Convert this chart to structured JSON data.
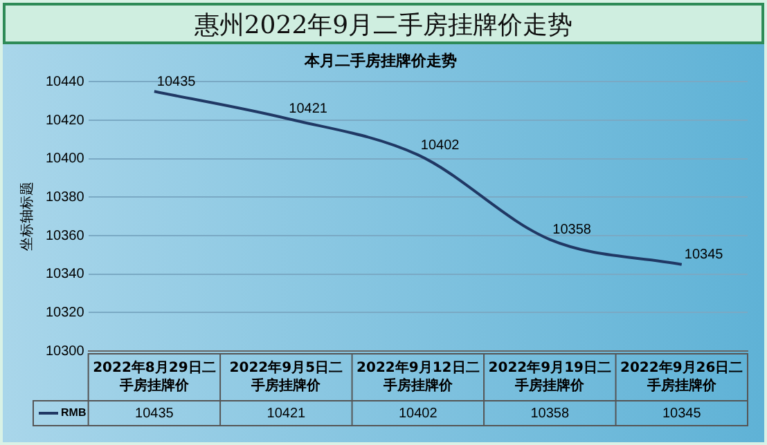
{
  "chart_data": {
    "type": "line",
    "title": "惠州2022年9月二手房挂牌价走势",
    "subtitle": "本月二手房挂牌价走势",
    "ylabel": "坐标轴标题",
    "categories": [
      "2022年8月29日二手房挂牌价",
      "2022年9月5日二手房挂牌价",
      "2022年9月12日二手房挂牌价",
      "2022年9月19日二手房挂牌价",
      "2022年9月26日二手房挂牌价"
    ],
    "series": [
      {
        "name": "RMB",
        "color": "#203864",
        "values": [
          10435,
          10421,
          10402,
          10358,
          10345
        ]
      }
    ],
    "annotations": [
      {
        "text": "10435",
        "x": "2022年8月29日二手房挂牌价",
        "y": 10435
      },
      {
        "text": "10421",
        "x": "2022年9月5日二手房挂牌价",
        "y": 10421
      },
      {
        "text": "10402",
        "x": "2022年9月12日二手房挂牌价",
        "y": 10402
      },
      {
        "text": "10358",
        "x": "2022年9月19日二手房挂牌价",
        "y": 10358
      },
      {
        "text": "10345",
        "x": "2022年9月26日二手房挂牌价",
        "y": 10345
      }
    ],
    "ylim": [
      10300,
      10440
    ],
    "yticks": [
      10300,
      10320,
      10340,
      10360,
      10380,
      10400,
      10420,
      10440
    ],
    "grid": "y",
    "legend": "bottom",
    "data_labels": true,
    "marker": "none",
    "line_style": "solid"
  }
}
